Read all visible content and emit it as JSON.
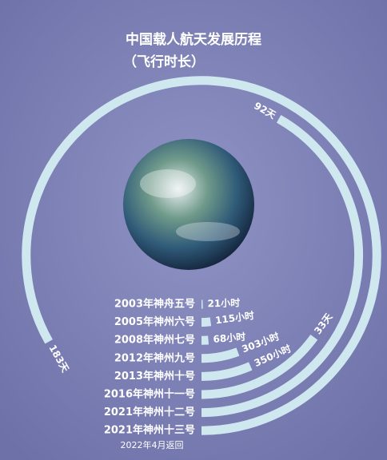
{
  "chart_data": {
    "type": "radial_bar",
    "title": "中国载人航天发展历程",
    "subtitle": "（飞行时长）",
    "categories": [
      "2003年神舟五号",
      "2005年神州六号",
      "2008年神州七号",
      "2012年神州九号",
      "2013年神州十号",
      "2016年神州十一号",
      "2021年神州十二号",
      "2021年神州十三号"
    ],
    "values": [
      21,
      115,
      68,
      303,
      350,
      792,
      2208,
      4392
    ],
    "value_labels": [
      "21小时",
      "115小时",
      "68小时",
      "303小时",
      "350小时",
      "33天",
      "92天",
      "183天"
    ],
    "color": "#cfe8f0",
    "note": "2022年4月返回"
  }
}
